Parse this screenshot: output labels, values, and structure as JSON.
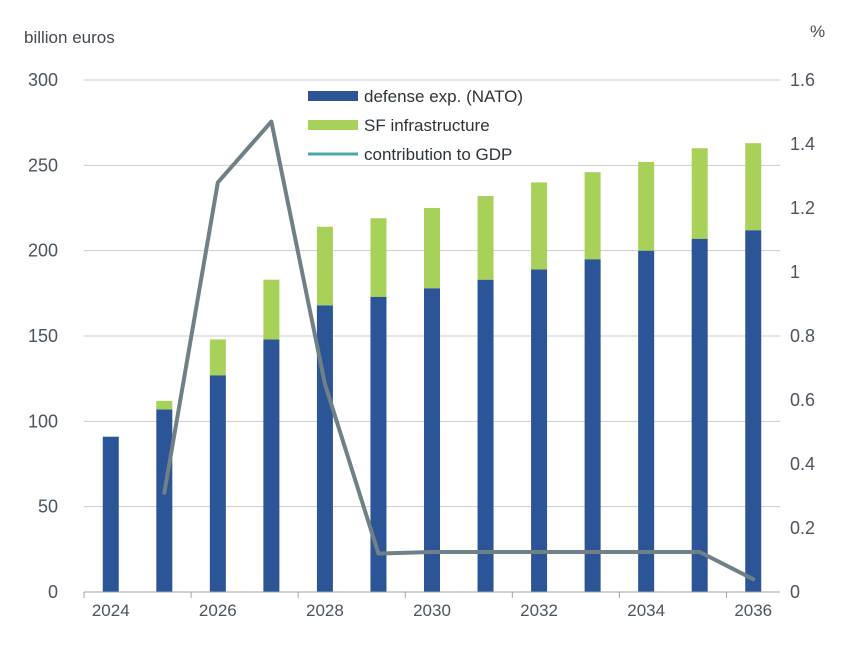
{
  "left_unit_label": "billion euros",
  "right_unit_label": "%",
  "chart_data": {
    "type": "bar",
    "stacked": true,
    "categories": [
      "2024",
      "2025",
      "2026",
      "2027",
      "2028",
      "2029",
      "2030",
      "2031",
      "2032",
      "2033",
      "2034",
      "2035",
      "2036"
    ],
    "x_tick_labels": [
      "2024",
      "2026",
      "2028",
      "2030",
      "2032",
      "2034",
      "2036"
    ],
    "series": [
      {
        "name": "defense exp. (NATO)",
        "kind": "bar",
        "axis": "left",
        "color": "#2b5596",
        "values": [
          91,
          107,
          127,
          148,
          168,
          173,
          178,
          183,
          189,
          195,
          200,
          207,
          212
        ]
      },
      {
        "name": "SF infrastructure",
        "kind": "bar",
        "axis": "left",
        "color": "#a8d15a",
        "values": [
          0,
          5,
          21,
          35,
          46,
          46,
          47,
          49,
          51,
          51,
          52,
          53,
          51
        ]
      },
      {
        "name": "contribution to GDP",
        "kind": "line",
        "axis": "right",
        "color": "#6f8087",
        "legend_color": "#4aa7a8",
        "values": [
          null,
          0.31,
          1.28,
          1.47,
          0.65,
          0.12,
          0.125,
          0.125,
          0.125,
          0.125,
          0.125,
          0.125,
          0.04
        ]
      }
    ],
    "left_axis": {
      "ticks": [
        0,
        50,
        100,
        150,
        200,
        250,
        300
      ],
      "ylim": [
        0,
        300
      ]
    },
    "right_axis": {
      "ticks": [
        "0",
        "0.2",
        "0.4",
        "0.6",
        "0.8",
        "1",
        "1.2",
        "1.4",
        "1.6"
      ],
      "ylim": [
        0,
        1.6
      ]
    },
    "grid": true,
    "legend_position": "top-center"
  }
}
